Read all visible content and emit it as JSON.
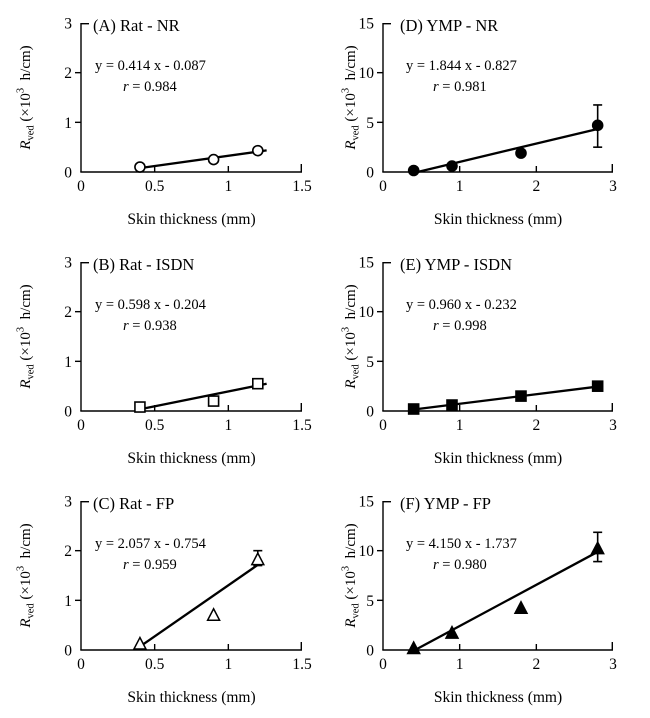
{
  "figure": {
    "background": "#ffffff",
    "ink_color": "#000000",
    "xlabel": "Skin thickness (mm)",
    "ylabel_plain": "R ved (×10^3 h/cm)",
    "ylabel_parts": {
      "base": "R",
      "sub": "ved",
      "mid": " (×10",
      "sup": "3",
      "end": "  h/cm)"
    }
  },
  "chart_data": [
    {
      "id": "A",
      "type": "scatter",
      "title": "(A) Rat - NR",
      "marker": "circle-open",
      "equation": "y = 0.414 x - 0.087",
      "r_value": "0.984",
      "fit": {
        "slope": 0.414,
        "intercept": -0.087,
        "x_start": 0.38,
        "x_end": 1.26
      },
      "points": [
        [
          0.4,
          0.1
        ],
        [
          0.9,
          0.25
        ],
        [
          1.2,
          0.43
        ]
      ],
      "error_bars": [],
      "xlim": [
        0,
        1.5
      ],
      "ylim": [
        0,
        3
      ],
      "xticks": [
        0,
        0.5,
        1,
        1.5
      ],
      "xtick_labels": [
        "0",
        "0.5",
        "1",
        "1.5"
      ],
      "yticks": [
        0,
        1,
        2,
        3
      ],
      "ytick_labels": [
        "0",
        "1",
        "2",
        "3"
      ],
      "xlabel": "Skin thickness (mm)",
      "ylabel": "R ved (×10^3 h/cm)",
      "grid": false
    },
    {
      "id": "D",
      "type": "scatter",
      "title": "(D) YMP - NR",
      "marker": "circle-filled",
      "equation": "y = 1.844 x - 0.827",
      "r_value": "0.981",
      "fit": {
        "slope": 1.844,
        "intercept": -0.827,
        "x_start": 0.45,
        "x_end": 2.84
      },
      "points": [
        [
          0.4,
          0.15
        ],
        [
          0.9,
          0.6
        ],
        [
          1.8,
          1.9
        ],
        [
          2.8,
          4.7
        ]
      ],
      "error_bars": [
        {
          "x": 2.8,
          "y": 4.7,
          "plus": 2.05,
          "minus": 2.2
        }
      ],
      "xlim": [
        0,
        3
      ],
      "ylim": [
        0,
        15
      ],
      "xticks": [
        0,
        1,
        2,
        3
      ],
      "xtick_labels": [
        "0",
        "1",
        "2",
        "3"
      ],
      "yticks": [
        0,
        5,
        10,
        15
      ],
      "ytick_labels": [
        "0",
        "5",
        "10",
        "15"
      ],
      "xlabel": "Skin thickness (mm)",
      "ylabel": "R ved (×10^3 h/cm)",
      "grid": false
    },
    {
      "id": "B",
      "type": "scatter",
      "title": "(B) Rat - ISDN",
      "marker": "square-open",
      "equation": "y = 0.598 x - 0.204",
      "r_value": "0.938",
      "fit": {
        "slope": 0.598,
        "intercept": -0.204,
        "x_start": 0.38,
        "x_end": 1.26
      },
      "points": [
        [
          0.4,
          0.08
        ],
        [
          0.9,
          0.2
        ],
        [
          1.2,
          0.55
        ]
      ],
      "error_bars": [],
      "xlim": [
        0,
        1.5
      ],
      "ylim": [
        0,
        3
      ],
      "xticks": [
        0,
        0.5,
        1,
        1.5
      ],
      "xtick_labels": [
        "0",
        "0.5",
        "1",
        "1.5"
      ],
      "yticks": [
        0,
        1,
        2,
        3
      ],
      "ytick_labels": [
        "0",
        "1",
        "2",
        "3"
      ],
      "xlabel": "Skin thickness (mm)",
      "ylabel": "R ved (×10^3 h/cm)",
      "grid": false
    },
    {
      "id": "E",
      "type": "scatter",
      "title": "(E) YMP - ISDN",
      "marker": "square-filled",
      "equation": "y = 0.960 x - 0.232",
      "r_value": "0.998",
      "fit": {
        "slope": 0.96,
        "intercept": -0.232,
        "x_start": 0.4,
        "x_end": 2.87
      },
      "points": [
        [
          0.4,
          0.2
        ],
        [
          0.9,
          0.6
        ],
        [
          1.8,
          1.5
        ],
        [
          2.8,
          2.5
        ]
      ],
      "error_bars": [],
      "xlim": [
        0,
        3
      ],
      "ylim": [
        0,
        15
      ],
      "xticks": [
        0,
        1,
        2,
        3
      ],
      "xtick_labels": [
        "0",
        "1",
        "2",
        "3"
      ],
      "yticks": [
        0,
        5,
        10,
        15
      ],
      "ytick_labels": [
        "0",
        "5",
        "10",
        "15"
      ],
      "xlabel": "Skin thickness (mm)",
      "ylabel": "R ved (×10^3 h/cm)",
      "grid": false
    },
    {
      "id": "C",
      "type": "scatter",
      "title": "(C) Rat - FP",
      "marker": "triangle-open",
      "equation": "y = 2.057 x - 0.754",
      "r_value": "0.959",
      "fit": {
        "slope": 2.057,
        "intercept": -0.754,
        "x_start": 0.4,
        "x_end": 1.23
      },
      "points": [
        [
          0.4,
          0.12
        ],
        [
          0.9,
          0.7
        ],
        [
          1.2,
          1.82
        ]
      ],
      "error_bars": [
        {
          "x": 1.2,
          "y": 1.82,
          "plus": 0.18,
          "minus": 0.12
        }
      ],
      "xlim": [
        0,
        1.5
      ],
      "ylim": [
        0,
        3
      ],
      "xticks": [
        0,
        0.5,
        1,
        1.5
      ],
      "xtick_labels": [
        "0",
        "0.5",
        "1",
        "1.5"
      ],
      "yticks": [
        0,
        1,
        2,
        3
      ],
      "ytick_labels": [
        "0",
        "1",
        "2",
        "3"
      ],
      "xlabel": "Skin thickness (mm)",
      "ylabel": "R ved (×10^3 h/cm)",
      "grid": false
    },
    {
      "id": "F",
      "type": "scatter",
      "title": "(F) YMP - FP",
      "marker": "triangle-filled",
      "equation": "y = 4.150 x - 1.737",
      "r_value": "0.980",
      "fit": {
        "slope": 4.15,
        "intercept": -1.737,
        "x_start": 0.43,
        "x_end": 2.84
      },
      "points": [
        [
          0.4,
          0.15
        ],
        [
          0.9,
          1.7
        ],
        [
          1.8,
          4.2
        ],
        [
          2.8,
          10.2
        ]
      ],
      "error_bars": [
        {
          "x": 2.8,
          "y": 10.2,
          "plus": 1.65,
          "minus": 1.3
        }
      ],
      "xlim": [
        0,
        3
      ],
      "ylim": [
        0,
        15
      ],
      "xticks": [
        0,
        1,
        2,
        3
      ],
      "xtick_labels": [
        "0",
        "1",
        "2",
        "3"
      ],
      "yticks": [
        0,
        5,
        10,
        15
      ],
      "ytick_labels": [
        "0",
        "5",
        "10",
        "15"
      ],
      "xlabel": "Skin thickness (mm)",
      "ylabel": "R ved (×10^3 h/cm)",
      "grid": false
    }
  ]
}
